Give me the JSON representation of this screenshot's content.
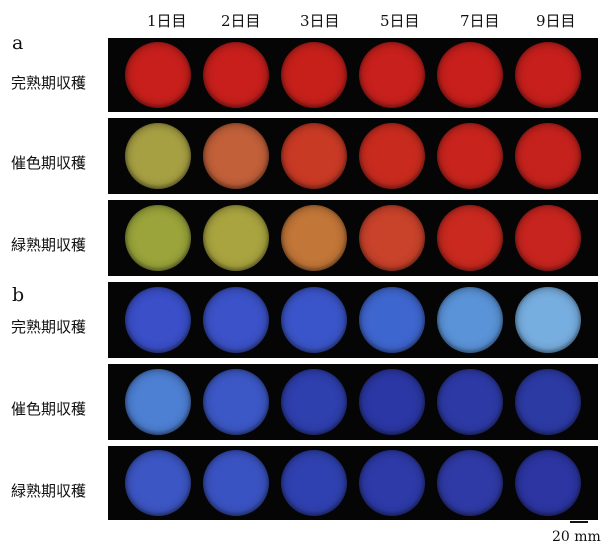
{
  "days": [
    "1日目",
    "2日目",
    "3日目",
    "5日目",
    "7日目",
    "9日目"
  ],
  "sections": [
    {
      "label": "a",
      "rows": [
        {
          "label": "完熟期収穫",
          "colors": [
            "#c81f1c",
            "#c81f1c",
            "#c7201b",
            "#c8201c",
            "#c81f1c",
            "#c61f1c"
          ]
        },
        {
          "label": "催色期収穫",
          "colors": [
            "#a7a043",
            "#c2603a",
            "#c93a25",
            "#c82b1e",
            "#c8241d",
            "#c6221d"
          ]
        },
        {
          "label": "緑熟期収穫",
          "colors": [
            "#9aa43a",
            "#a9a43f",
            "#c27638",
            "#c9422a",
            "#c9291f",
            "#c7241f"
          ]
        }
      ]
    },
    {
      "label": "b",
      "rows": [
        {
          "label": "完熟期収穫",
          "colors": [
            "#3a4fc8",
            "#3b52c8",
            "#3a55c9",
            "#3e66cf",
            "#5a93d8",
            "#77aee0"
          ]
        },
        {
          "label": "催色期収穫",
          "colors": [
            "#4d7fd3",
            "#3c58c6",
            "#2e3fae",
            "#2b37a4",
            "#2d3aa6",
            "#2c3aa4"
          ]
        },
        {
          "label": "緑熟期収穫",
          "colors": [
            "#3c56c4",
            "#3a53c2",
            "#2f41b0",
            "#2d3aa8",
            "#2f3aa6",
            "#2c35a2"
          ]
        }
      ]
    }
  ],
  "scale_bar_label": "20 mm"
}
